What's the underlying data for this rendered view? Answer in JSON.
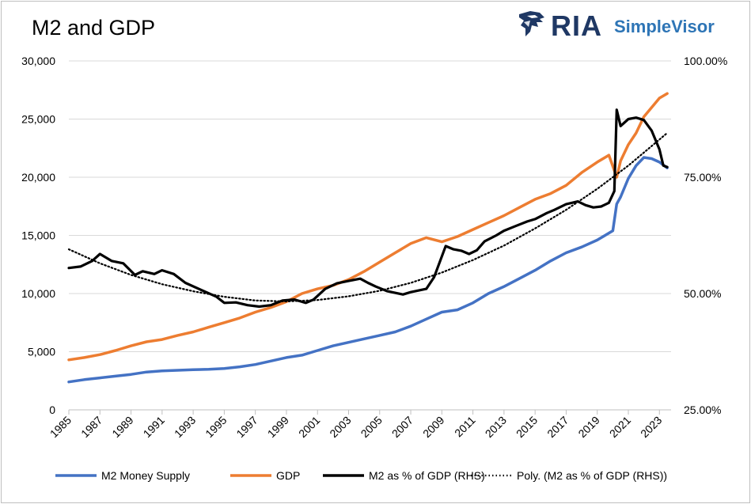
{
  "chart_data": {
    "type": "line",
    "title": "M2 and GDP",
    "left_axis": {
      "ylim": [
        0,
        30000
      ],
      "tick_labels": [
        "0",
        "5,000",
        "10,000",
        "15,000",
        "20,000",
        "25,000",
        "30,000"
      ],
      "tick_values": [
        0,
        5000,
        10000,
        15000,
        20000,
        25000,
        30000
      ]
    },
    "right_axis": {
      "ylim": [
        25,
        100
      ],
      "tick_labels": [
        "25.00%",
        "50.00%",
        "75.00%",
        "100.00%"
      ],
      "tick_values": [
        25,
        50,
        75,
        100
      ]
    },
    "x_axis": {
      "xlim": [
        1985,
        2023.75
      ],
      "tick_labels": [
        "1985",
        "1987",
        "1989",
        "1991",
        "1993",
        "1995",
        "1997",
        "1999",
        "2001",
        "2003",
        "2005",
        "2007",
        "2009",
        "2011",
        "2013",
        "2015",
        "2017",
        "2019",
        "2021",
        "2023"
      ],
      "tick_values": [
        1985,
        1987,
        1989,
        1991,
        1993,
        1995,
        1997,
        1999,
        2001,
        2003,
        2005,
        2007,
        2009,
        2011,
        2013,
        2015,
        2017,
        2019,
        2021,
        2023
      ]
    },
    "grid": "horizontal",
    "legend_position": "bottom",
    "series": [
      {
        "name": "M2 Money Supply",
        "axis": "left",
        "color": "#4472c4",
        "style": "solid",
        "points": [
          [
            1985,
            2400
          ],
          [
            1986,
            2600
          ],
          [
            1987,
            2750
          ],
          [
            1988,
            2900
          ],
          [
            1989,
            3050
          ],
          [
            1990,
            3250
          ],
          [
            1991,
            3350
          ],
          [
            1992,
            3400
          ],
          [
            1993,
            3450
          ],
          [
            1994,
            3480
          ],
          [
            1995,
            3550
          ],
          [
            1996,
            3700
          ],
          [
            1997,
            3900
          ],
          [
            1998,
            4200
          ],
          [
            1999,
            4500
          ],
          [
            2000,
            4700
          ],
          [
            2001,
            5100
          ],
          [
            2002,
            5500
          ],
          [
            2003,
            5800
          ],
          [
            2004,
            6100
          ],
          [
            2005,
            6400
          ],
          [
            2006,
            6700
          ],
          [
            2007,
            7200
          ],
          [
            2008,
            7800
          ],
          [
            2009,
            8400
          ],
          [
            2010,
            8600
          ],
          [
            2011,
            9200
          ],
          [
            2012,
            10000
          ],
          [
            2013,
            10600
          ],
          [
            2014,
            11300
          ],
          [
            2015,
            12000
          ],
          [
            2016,
            12800
          ],
          [
            2017,
            13500
          ],
          [
            2018,
            14000
          ],
          [
            2019,
            14600
          ],
          [
            2020,
            15400
          ],
          [
            2020.25,
            17700
          ],
          [
            2020.5,
            18300
          ],
          [
            2021,
            19900
          ],
          [
            2021.5,
            21000
          ],
          [
            2022,
            21700
          ],
          [
            2022.5,
            21600
          ],
          [
            2023,
            21300
          ],
          [
            2023.5,
            20800
          ]
        ]
      },
      {
        "name": "GDP",
        "axis": "left",
        "color": "#ed7d31",
        "style": "solid",
        "points": [
          [
            1985,
            4300
          ],
          [
            1986,
            4500
          ],
          [
            1987,
            4750
          ],
          [
            1988,
            5100
          ],
          [
            1989,
            5500
          ],
          [
            1990,
            5850
          ],
          [
            1991,
            6050
          ],
          [
            1992,
            6400
          ],
          [
            1993,
            6700
          ],
          [
            1994,
            7100
          ],
          [
            1995,
            7500
          ],
          [
            1996,
            7900
          ],
          [
            1997,
            8400
          ],
          [
            1998,
            8800
          ],
          [
            1999,
            9300
          ],
          [
            2000,
            10000
          ],
          [
            2001,
            10400
          ],
          [
            2002,
            10700
          ],
          [
            2003,
            11200
          ],
          [
            2004,
            11900
          ],
          [
            2005,
            12700
          ],
          [
            2006,
            13500
          ],
          [
            2007,
            14300
          ],
          [
            2008,
            14800
          ],
          [
            2009,
            14450
          ],
          [
            2010,
            14900
          ],
          [
            2011,
            15500
          ],
          [
            2012,
            16100
          ],
          [
            2013,
            16700
          ],
          [
            2014,
            17400
          ],
          [
            2015,
            18100
          ],
          [
            2016,
            18600
          ],
          [
            2017,
            19300
          ],
          [
            2018,
            20400
          ],
          [
            2019,
            21300
          ],
          [
            2019.75,
            21900
          ],
          [
            2020.25,
            20000
          ],
          [
            2020.5,
            21400
          ],
          [
            2021,
            22800
          ],
          [
            2021.5,
            23800
          ],
          [
            2022,
            25200
          ],
          [
            2022.5,
            26000
          ],
          [
            2023,
            26800
          ],
          [
            2023.5,
            27200
          ]
        ]
      },
      {
        "name": "M2 as % of GDP (RHS)",
        "axis": "right",
        "color": "#000000",
        "style": "solid",
        "points": [
          [
            1985,
            55.5
          ],
          [
            1985.75,
            55.8
          ],
          [
            1986.5,
            57
          ],
          [
            1987,
            58.5
          ],
          [
            1987.75,
            57
          ],
          [
            1988.5,
            56.5
          ],
          [
            1989.25,
            54
          ],
          [
            1989.75,
            54.8
          ],
          [
            1990.5,
            54.2
          ],
          [
            1991,
            55
          ],
          [
            1991.75,
            54.2
          ],
          [
            1992.5,
            52.3
          ],
          [
            1993.5,
            50.8
          ],
          [
            1994.5,
            49.3
          ],
          [
            1995,
            48
          ],
          [
            1995.75,
            48.1
          ],
          [
            1996.5,
            47.5
          ],
          [
            1997.25,
            47.2
          ],
          [
            1998,
            47.5
          ],
          [
            1998.75,
            48.5
          ],
          [
            1999.5,
            48.7
          ],
          [
            2000.25,
            48
          ],
          [
            2000.75,
            48.7
          ],
          [
            2001.5,
            51
          ],
          [
            2002.25,
            52.2
          ],
          [
            2003,
            52.7
          ],
          [
            2003.75,
            53.2
          ],
          [
            2004.25,
            52.3
          ],
          [
            2004.75,
            51.5
          ],
          [
            2005.5,
            50.5
          ],
          [
            2006.5,
            49.8
          ],
          [
            2007,
            50.3
          ],
          [
            2008,
            51
          ],
          [
            2008.5,
            53.5
          ],
          [
            2009.25,
            60.2
          ],
          [
            2009.75,
            59.5
          ],
          [
            2010.25,
            59.2
          ],
          [
            2010.75,
            58.5
          ],
          [
            2011.25,
            59.3
          ],
          [
            2011.75,
            61.2
          ],
          [
            2012.5,
            62.5
          ],
          [
            2013,
            63.5
          ],
          [
            2013.75,
            64.5
          ],
          [
            2014.5,
            65.5
          ],
          [
            2015,
            66
          ],
          [
            2015.75,
            67.3
          ],
          [
            2016.25,
            68
          ],
          [
            2017,
            69.2
          ],
          [
            2017.75,
            69.8
          ],
          [
            2018.25,
            69
          ],
          [
            2018.75,
            68.5
          ],
          [
            2019.25,
            68.7
          ],
          [
            2019.75,
            69.5
          ],
          [
            2020.1,
            72
          ],
          [
            2020.25,
            89.5
          ],
          [
            2020.5,
            86
          ],
          [
            2021,
            87.5
          ],
          [
            2021.5,
            87.8
          ],
          [
            2022,
            87.3
          ],
          [
            2022.5,
            85
          ],
          [
            2023,
            81
          ],
          [
            2023.25,
            77.5
          ],
          [
            2023.5,
            77.2
          ]
        ]
      },
      {
        "name": "Poly. (M2 as % of GDP (RHS))",
        "axis": "right",
        "color": "#000000",
        "style": "dotted",
        "points": [
          [
            1985,
            59.5
          ],
          [
            1987,
            56.5
          ],
          [
            1989,
            54
          ],
          [
            1991,
            52
          ],
          [
            1993,
            50.5
          ],
          [
            1995,
            49.3
          ],
          [
            1997,
            48.5
          ],
          [
            1999,
            48.3
          ],
          [
            2001,
            48.6
          ],
          [
            2003,
            49.4
          ],
          [
            2005,
            50.6
          ],
          [
            2007,
            52.3
          ],
          [
            2009,
            54.5
          ],
          [
            2011,
            57.2
          ],
          [
            2013,
            60.3
          ],
          [
            2015,
            64
          ],
          [
            2017,
            68
          ],
          [
            2019,
            72.5
          ],
          [
            2021,
            77.5
          ],
          [
            2023.5,
            84.5
          ]
        ]
      }
    ]
  },
  "logo": {
    "brand": "RIA",
    "product": "SimpleVisor"
  }
}
